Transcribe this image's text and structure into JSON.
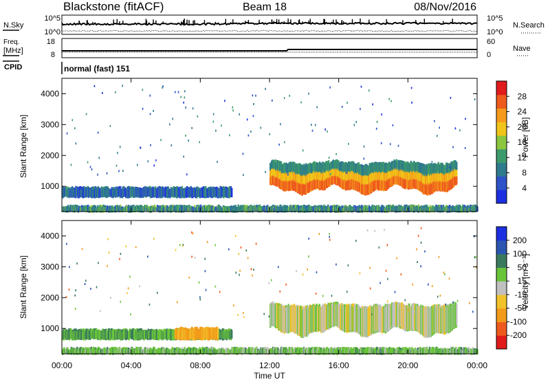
{
  "header": {
    "station": "Blackstone (fitACF)",
    "beam": "Beam 18",
    "date": "08/Nov/2016"
  },
  "strip": {
    "nsky_label": "N.Sky",
    "nsearch_label": "N.Search",
    "freq_label_1": "Freq.",
    "freq_label_2": "[MHz]",
    "nave_label": "Nave",
    "cpid_label": "CPID",
    "cpid_value": "normal (fast) 151",
    "noise_left_ticks": [
      "10^5",
      "10^0"
    ],
    "noise_right_ticks": [
      "10^5",
      "10^0"
    ],
    "freq_ticks": [
      "18",
      "8"
    ],
    "nave_ticks": [
      "60",
      "0"
    ]
  },
  "power_colorbar": {
    "title": "Power [dB]",
    "ticks": [
      "28",
      "24",
      "20",
      "16",
      "12",
      "8",
      "4"
    ]
  },
  "velocity_colorbar": {
    "title": "Velocity [m s⁻¹]",
    "ticks": [
      "200",
      "100",
      "50",
      "15",
      "-15",
      "-50",
      "-100",
      "-200"
    ]
  },
  "chart_data": [
    {
      "type": "heatmap",
      "title": "Power",
      "ylabel": "Slant Range [km]",
      "xlabel": "Time UT",
      "ylim": [
        180,
        4500
      ],
      "xlim": [
        0,
        24
      ],
      "x_ticks": [
        "00:00",
        "04:00",
        "08:00",
        "12:00",
        "16:00",
        "20:00",
        "00:00"
      ],
      "y_ticks": [
        1000,
        2000,
        3000,
        4000
      ],
      "colorbar_range": [
        0,
        32
      ],
      "regions": [
        {
          "t_start": 0.0,
          "t_end": 9.8,
          "r_low": 650,
          "r_high": 950,
          "level": 6
        },
        {
          "t_start": 0.0,
          "t_end": 24.0,
          "r_low": 180,
          "r_high": 350,
          "level": 10
        },
        {
          "t_start": 12.0,
          "t_end": 22.8,
          "r_low": 900,
          "r_high": 1750,
          "level": 22
        }
      ]
    },
    {
      "type": "heatmap",
      "title": "Velocity",
      "ylabel": "Slant Range [km]",
      "xlabel": "Time UT",
      "ylim": [
        180,
        4500
      ],
      "xlim": [
        0,
        24
      ],
      "x_ticks": [
        "00:00",
        "04:00",
        "08:00",
        "12:00",
        "16:00",
        "20:00",
        "00:00"
      ],
      "y_ticks": [
        1000,
        2000,
        3000,
        4000
      ],
      "colorbar_range": [
        -250,
        250
      ],
      "regions": [
        {
          "t_start": 0.0,
          "t_end": 9.8,
          "r_low": 650,
          "r_high": 950,
          "value": 30
        },
        {
          "t_start": 6.5,
          "t_end": 9.0,
          "r_low": 650,
          "r_high": 1000,
          "value": -40
        },
        {
          "t_start": 0.0,
          "t_end": 24.0,
          "r_low": 180,
          "r_high": 350,
          "value": 20
        },
        {
          "t_start": 12.0,
          "t_end": 22.8,
          "r_low": 900,
          "r_high": 1750,
          "value": 0
        }
      ]
    }
  ]
}
